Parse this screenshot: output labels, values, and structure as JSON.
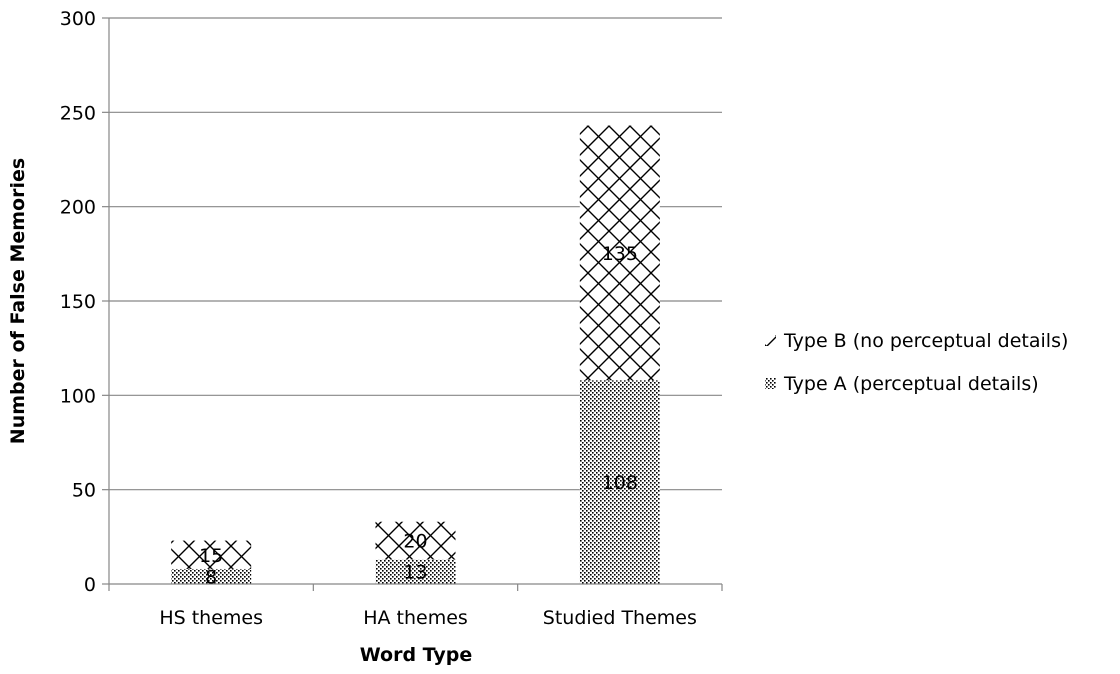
{
  "chart_data": {
    "type": "bar",
    "stacked": true,
    "categories": [
      "HS themes",
      "HA themes",
      "Studied Themes"
    ],
    "series": [
      {
        "name": "Type A (perceptual details)",
        "values": [
          8,
          13,
          108
        ],
        "pattern": "dots"
      },
      {
        "name": "Type B (no perceptual details)",
        "values": [
          15,
          20,
          135
        ],
        "pattern": "crosshatch"
      }
    ],
    "xlabel": "Word Type",
    "ylabel": "Number of False Memories",
    "ylim": [
      0,
      300
    ],
    "yticks": [
      0,
      50,
      100,
      150,
      200,
      250,
      300
    ],
    "grid": true,
    "legend_position": "right",
    "legend_order": [
      "Type B (no perceptual details)",
      "Type A (perceptual details)"
    ]
  }
}
